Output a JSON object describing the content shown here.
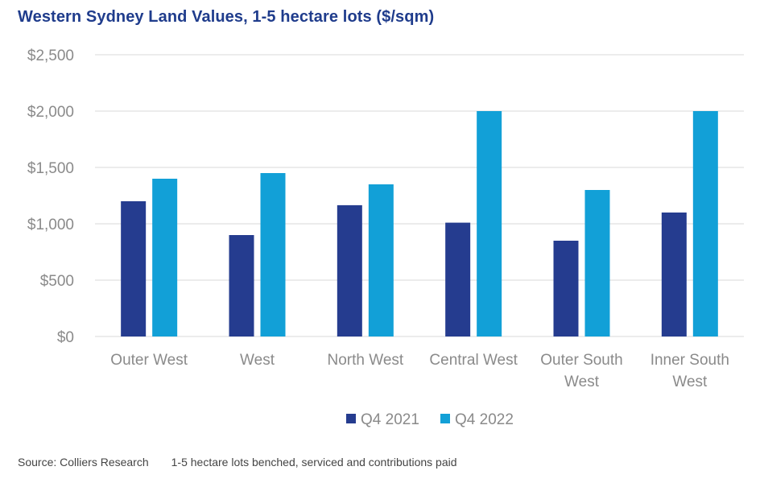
{
  "chart_data": {
    "type": "bar",
    "title": "Western Sydney Land Values, 1-5 hectare lots ($/sqm)",
    "categories": [
      [
        "Outer West"
      ],
      [
        "West"
      ],
      [
        "North West"
      ],
      [
        "Central West"
      ],
      [
        "Outer South",
        "West"
      ],
      [
        "Inner South",
        "West"
      ]
    ],
    "series": [
      {
        "name": "Q4 2021",
        "color": "#253c8f",
        "values": [
          1200,
          900,
          1165,
          1010,
          850,
          1100
        ]
      },
      {
        "name": "Q4 2022",
        "color": "#12a0d7",
        "values": [
          1400,
          1450,
          1350,
          2000,
          1300,
          2000
        ]
      }
    ],
    "ylim": [
      0,
      2500
    ],
    "yticks": [
      0,
      500,
      1000,
      1500,
      2000,
      2500
    ],
    "ytick_labels": [
      "$0",
      "$500",
      "$1,000",
      "$1,500",
      "$2,000",
      "$2,500"
    ],
    "grid": true,
    "legend_position": "bottom-center"
  },
  "footer": {
    "source": "Source: Colliers Research",
    "note": "1-5 hectare lots benched, serviced and contributions paid"
  },
  "colors": {
    "title": "#1f3c8c",
    "grid": "#d9d9d9",
    "axis_text": "#8a8a8a"
  }
}
